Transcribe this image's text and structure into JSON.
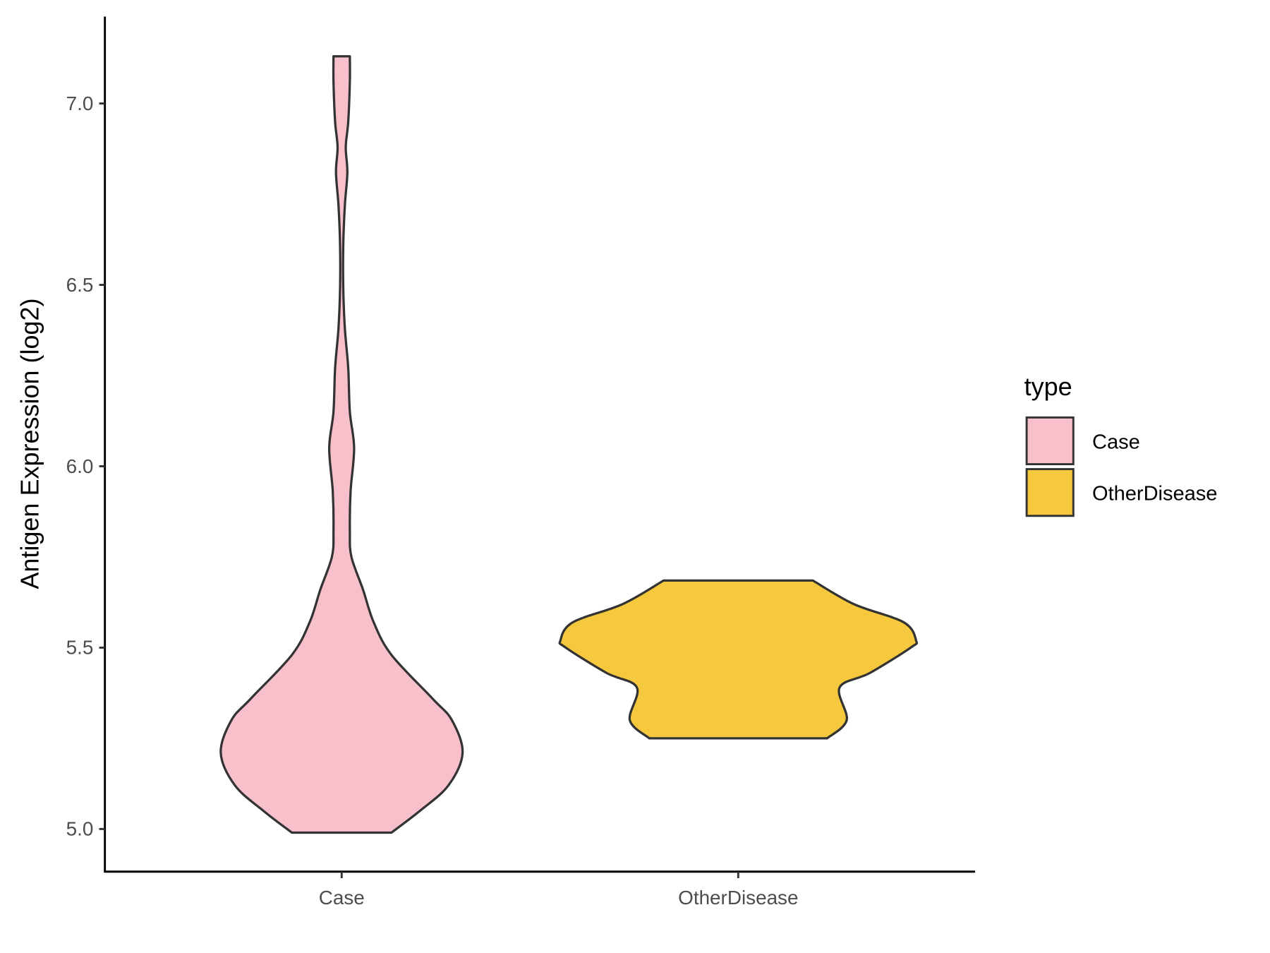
{
  "chart_data": {
    "type": "violin",
    "title": "",
    "xlabel": "",
    "ylabel": "Antigen Expression (log2)",
    "ylim": [
      4.885,
      7.235
    ],
    "yticks": [
      5.0,
      5.5,
      6.0,
      6.5,
      7.0
    ],
    "ytick_labels": [
      "5.0",
      "5.5",
      "6.0",
      "6.5",
      "7.0"
    ],
    "categories": [
      "Case",
      "OtherDisease"
    ],
    "grid": false,
    "legend": {
      "title": "type",
      "placement": "right",
      "entries": [
        "Case",
        "OtherDisease"
      ]
    },
    "series": [
      {
        "name": "Case",
        "color": "#F7C0CB",
        "range": [
          4.99,
          7.13
        ],
        "profile_note": "y (log2), relative density width",
        "profile": [
          [
            4.99,
            0.28
          ],
          [
            5.05,
            0.44
          ],
          [
            5.12,
            0.6
          ],
          [
            5.21,
            0.68
          ],
          [
            5.3,
            0.62
          ],
          [
            5.36,
            0.51
          ],
          [
            5.48,
            0.28
          ],
          [
            5.57,
            0.18
          ],
          [
            5.66,
            0.12
          ],
          [
            5.75,
            0.055
          ],
          [
            5.82,
            0.046
          ],
          [
            5.93,
            0.05
          ],
          [
            6.05,
            0.07
          ],
          [
            6.15,
            0.046
          ],
          [
            6.27,
            0.037
          ],
          [
            6.38,
            0.018
          ],
          [
            6.49,
            0.009
          ],
          [
            6.61,
            0.009
          ],
          [
            6.72,
            0.018
          ],
          [
            6.81,
            0.032
          ],
          [
            6.88,
            0.023
          ],
          [
            6.95,
            0.037
          ],
          [
            7.06,
            0.046
          ],
          [
            7.13,
            0.046
          ]
        ]
      },
      {
        "name": "OtherDisease",
        "color": "#F5C83D",
        "range": [
          5.25,
          5.685
        ],
        "profile": [
          [
            5.25,
            0.5
          ],
          [
            5.3,
            0.61
          ],
          [
            5.39,
            0.57
          ],
          [
            5.43,
            0.74
          ],
          [
            5.5,
            0.97
          ],
          [
            5.52,
            1.0
          ],
          [
            5.57,
            0.93
          ],
          [
            5.62,
            0.65
          ],
          [
            5.685,
            0.42
          ]
        ]
      }
    ],
    "outline_color": "#333333"
  }
}
